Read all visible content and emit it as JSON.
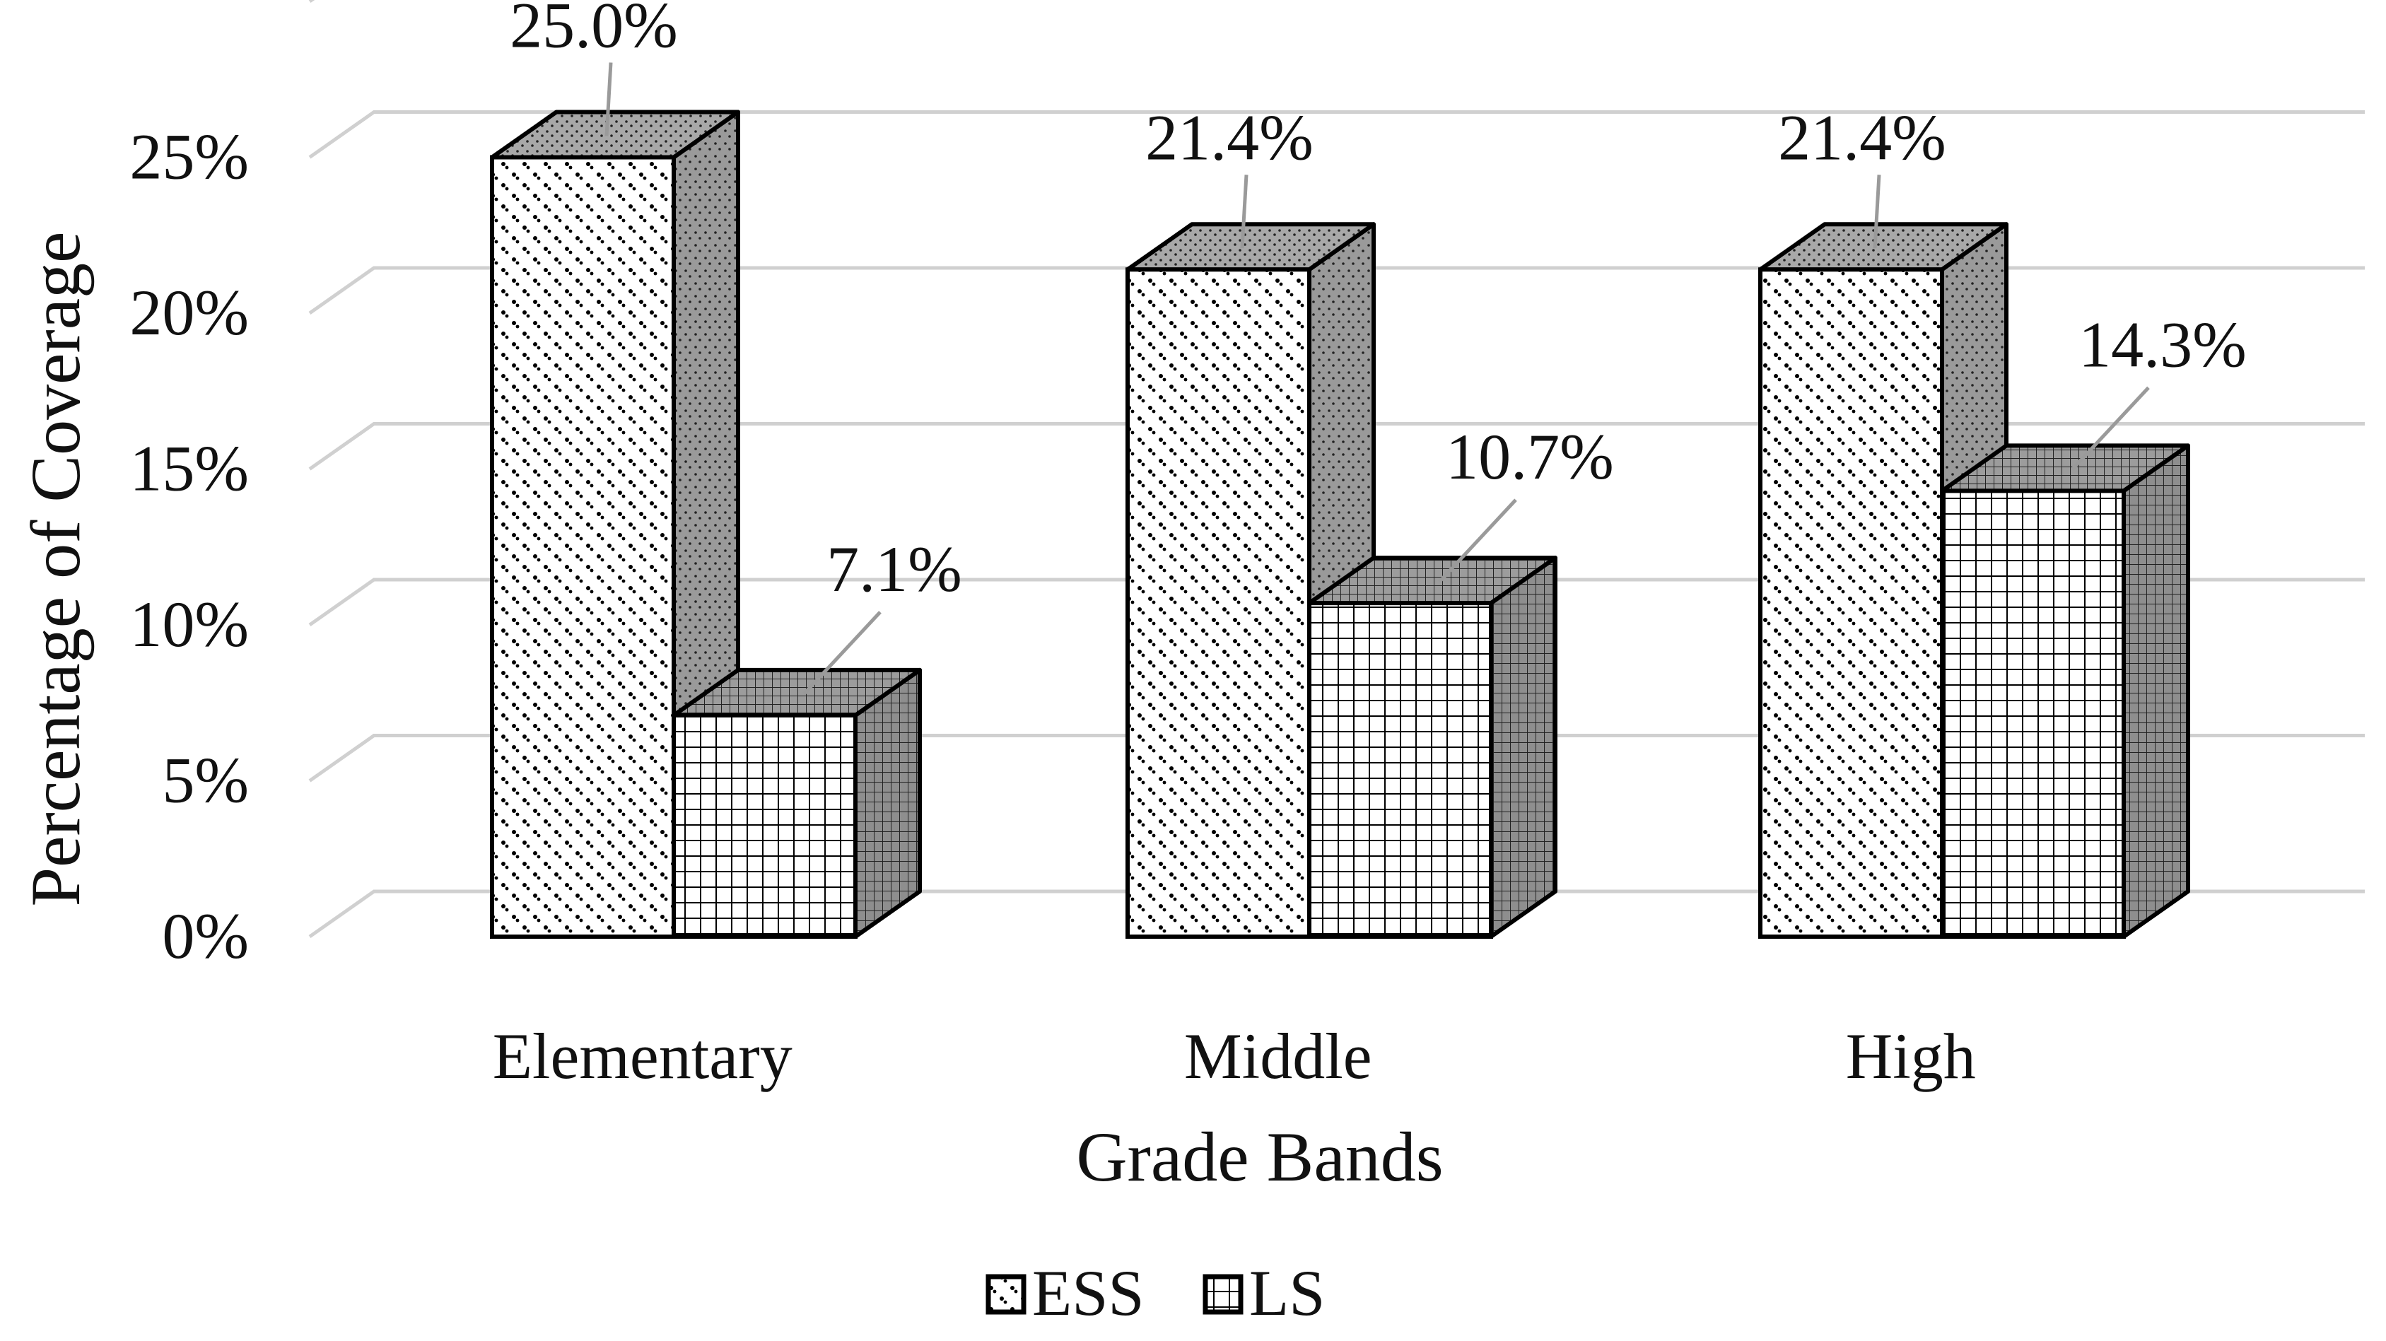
{
  "chart_data": {
    "type": "bar",
    "style": "3d-clustered-column",
    "title": "",
    "xlabel": "Grade Bands",
    "ylabel": "Percentage of Coverage",
    "categories": [
      "Elementary",
      "Middle",
      "High"
    ],
    "series": [
      {
        "name": "ESS",
        "values": [
          25.0,
          21.4,
          21.4
        ],
        "labels": [
          "25.0%",
          "21.4%",
          "21.4%"
        ],
        "pattern": "dots"
      },
      {
        "name": "LS",
        "values": [
          7.1,
          10.7,
          14.3
        ],
        "labels": [
          "7.1%",
          "10.7%",
          "14.3%"
        ],
        "pattern": "grid"
      }
    ],
    "ylim": [
      0,
      30
    ],
    "yticks": [
      0,
      5,
      10,
      15,
      20,
      25
    ],
    "ytick_labels": [
      "0%",
      "5%",
      "10%",
      "15%",
      "20%",
      "25%"
    ],
    "grid": true,
    "legend": "bottom",
    "colors": {
      "face": "#ffffff",
      "side": "#9a9a9a",
      "stroke": "#000000",
      "gridline": "#d0d0d0",
      "leader": "#9a9a9a"
    }
  }
}
